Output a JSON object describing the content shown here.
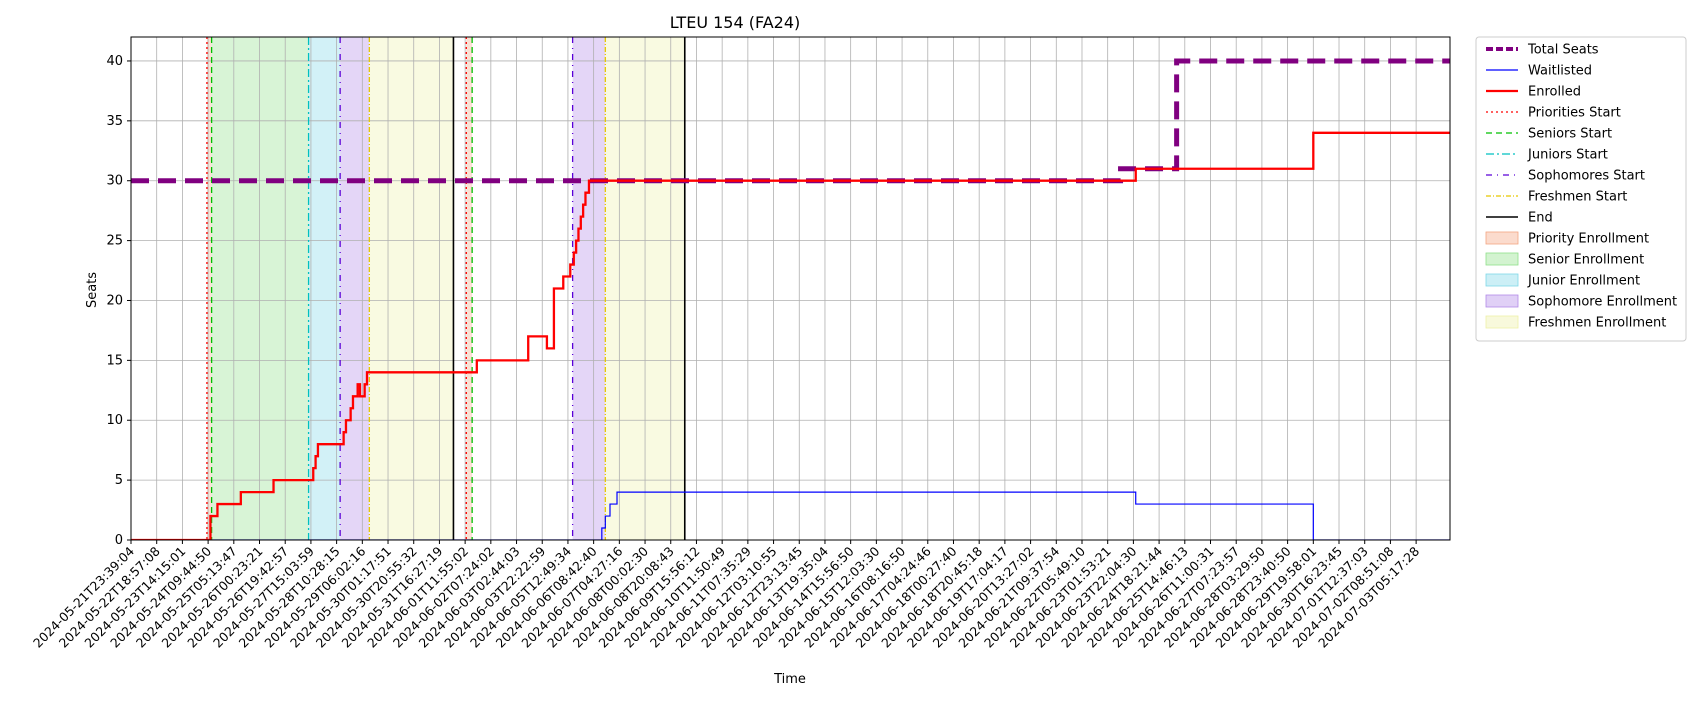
{
  "chart_data": {
    "type": "line",
    "title": "LTEU 154 (FA24)",
    "xlabel": "Time",
    "ylabel": "Seats",
    "ylim": [
      0,
      42
    ],
    "yticks": [
      0,
      5,
      10,
      15,
      20,
      25,
      30,
      35,
      40
    ],
    "xlim": [
      0,
      56.45
    ],
    "x_tick_labels": [
      "2024-05-21T23:39:04",
      "2024-05-22T18:57:08",
      "2024-05-23T14:15:01",
      "2024-05-24T09:44:50",
      "2024-05-25T05:13:47",
      "2024-05-26T00:23:21",
      "2024-05-26T19:42:57",
      "2024-05-27T15:03:59",
      "2024-05-28T10:28:15",
      "2024-05-29T06:02:16",
      "2024-05-30T01:17:51",
      "2024-05-30T20:55:32",
      "2024-05-31T16:27:19",
      "2024-06-01T11:55:02",
      "2024-06-02T07:24:02",
      "2024-06-03T02:44:03",
      "2024-06-03T22:22:59",
      "2024-06-05T12:49:34",
      "2024-06-06T08:42:40",
      "2024-06-07T04:27:16",
      "2024-06-08T00:02:30",
      "2024-06-08T20:08:43",
      "2024-06-09T15:56:12",
      "2024-06-10T11:50:49",
      "2024-06-11T07:35:29",
      "2024-06-12T03:10:55",
      "2024-06-12T23:13:45",
      "2024-06-13T19:35:04",
      "2024-06-14T15:56:50",
      "2024-06-15T12:03:30",
      "2024-06-16T08:16:50",
      "2024-06-17T04:24:46",
      "2024-06-18T00:27:40",
      "2024-06-18T20:45:18",
      "2024-06-19T17:04:17",
      "2024-06-20T13:27:02",
      "2024-06-21T09:37:54",
      "2024-06-22T05:49:10",
      "2024-06-23T01:53:21",
      "2024-06-23T22:04:30",
      "2024-06-24T18:21:44",
      "2024-06-25T14:46:13",
      "2024-06-26T11:00:31",
      "2024-06-27T07:23:57",
      "2024-06-28T03:29:50",
      "2024-06-28T23:40:50",
      "2024-06-29T19:58:01",
      "2024-06-30T16:23:45",
      "2024-07-01T12:37:03",
      "2024-07-02T08:51:08",
      "2024-07-03T05:17:28"
    ],
    "grid": true,
    "legend_position": "outside upper right",
    "phases": [
      {
        "name": "Priority Enrollment",
        "start": 3.25,
        "end": 3.45,
        "color": "#f4a582"
      },
      {
        "name": "Senior Enrollment",
        "start": 3.45,
        "end": 7.6,
        "color": "#90e08a"
      },
      {
        "name": "Junior Enrollment",
        "start": 7.6,
        "end": 8.95,
        "color": "#7fd8e8"
      },
      {
        "name": "Sophomore Enrollment",
        "start": 8.95,
        "end": 10.2,
        "color": "#b28ae8"
      },
      {
        "name": "Freshmen Enrollment",
        "start": 10.2,
        "end": 13.8,
        "color": "#eef0a8"
      },
      {
        "name": "Priority Enrollment",
        "start": 14.35,
        "end": 14.6,
        "color": "#f4a582"
      },
      {
        "name": "Sophomore Enrollment",
        "start": 18.9,
        "end": 20.3,
        "color": "#b28ae8"
      },
      {
        "name": "Freshmen Enrollment",
        "start": 20.3,
        "end": 23.7,
        "color": "#eef0a8"
      }
    ],
    "markers": [
      {
        "name": "Priorities Start",
        "x": 3.25,
        "color": "#ff0000",
        "dash": "2,3"
      },
      {
        "name": "Seniors Start",
        "x": 3.45,
        "color": "#00c000",
        "dash": "6,4"
      },
      {
        "name": "Juniors Start",
        "x": 7.6,
        "color": "#00c0c0",
        "dash": "8,3,2,3"
      },
      {
        "name": "Sophomores Start",
        "x": 8.95,
        "color": "#5a00d8",
        "dash": "6,5,1,5"
      },
      {
        "name": "Freshmen Start",
        "x": 10.2,
        "color": "#e6c800",
        "dash": "5,2,1,2"
      },
      {
        "name": "End",
        "x": 13.8,
        "color": "#000000",
        "dash": ""
      },
      {
        "name": "Priorities Start",
        "x": 14.35,
        "color": "#ff0000",
        "dash": "2,3"
      },
      {
        "name": "Seniors Start",
        "x": 14.6,
        "color": "#00c000",
        "dash": "6,4"
      },
      {
        "name": "Sophomores Start",
        "x": 18.9,
        "color": "#5a00d8",
        "dash": "6,5,1,5"
      },
      {
        "name": "Freshmen Start",
        "x": 20.3,
        "color": "#e6c800",
        "dash": "5,2,1,2"
      },
      {
        "name": "End",
        "x": 23.7,
        "color": "#000000",
        "dash": ""
      }
    ],
    "series": [
      {
        "name": "Total Seats",
        "color": "#800080",
        "style": "dashed-thick",
        "x": [
          0,
          42.35,
          42.35,
          43.5,
          43.5,
          44.75,
          44.75,
          56.45
        ],
        "y": [
          30,
          30,
          31,
          31,
          31,
          31,
          40,
          40
        ]
      },
      {
        "name": "Waitlisted",
        "color": "#0000ff",
        "style": "thin",
        "x": [
          0,
          20.15,
          20.15,
          20.3,
          20.3,
          20.5,
          20.5,
          20.8,
          20.8,
          43.0,
          43.0,
          50.6,
          50.6,
          56.45
        ],
        "y": [
          0,
          0,
          1,
          1,
          2,
          2,
          3,
          3,
          4,
          4,
          3,
          3,
          0,
          0
        ]
      },
      {
        "name": "Enrolled",
        "color": "#ff0000",
        "style": "solid",
        "x": [
          0,
          3.4,
          3.4,
          3.7,
          3.7,
          4.7,
          4.7,
          6.1,
          6.1,
          7.8,
          7.8,
          7.9,
          7.9,
          8.0,
          8.0,
          9.1,
          9.1,
          9.2,
          9.2,
          9.4,
          9.4,
          9.5,
          9.5,
          9.6,
          9.6,
          9.7,
          9.7,
          9.8,
          9.8,
          10.0,
          10.0,
          10.1,
          10.1,
          10.3,
          10.3,
          14.8,
          14.8,
          17.0,
          17.0,
          17.8,
          17.8,
          18.1,
          18.1,
          18.5,
          18.5,
          18.8,
          18.8,
          18.95,
          18.95,
          19.05,
          19.05,
          19.15,
          19.15,
          19.25,
          19.25,
          19.35,
          19.35,
          19.45,
          19.45,
          19.5,
          19.5,
          19.6,
          19.6,
          20.05,
          20.05,
          43.0,
          43.0,
          50.6,
          50.6,
          56.45
        ],
        "y": [
          0,
          0,
          2,
          2,
          3,
          3,
          4,
          4,
          5,
          5,
          6,
          6,
          7,
          7,
          8,
          8,
          9,
          9,
          10,
          10,
          11,
          11,
          12,
          12,
          12,
          12,
          13,
          13,
          12,
          12,
          13,
          13,
          14,
          14,
          14,
          14,
          15,
          15,
          17,
          17,
          16,
          16,
          21,
          21,
          22,
          22,
          23,
          23,
          24,
          24,
          25,
          25,
          26,
          26,
          27,
          27,
          28,
          28,
          29,
          29,
          29,
          29,
          30,
          30,
          30,
          30,
          31,
          31,
          34,
          34
        ]
      }
    ],
    "legend": [
      {
        "label": "Total Seats",
        "kind": "line",
        "color": "#800080",
        "dash": "7,3",
        "width": 4
      },
      {
        "label": "Waitlisted",
        "kind": "line",
        "color": "#0000ff",
        "dash": "",
        "width": 1.2
      },
      {
        "label": "Enrolled",
        "kind": "line",
        "color": "#ff0000",
        "dash": "",
        "width": 2.2
      },
      {
        "label": "Priorities Start",
        "kind": "line",
        "color": "#ff0000",
        "dash": "2,3",
        "width": 1.2
      },
      {
        "label": "Seniors Start",
        "kind": "line",
        "color": "#00c000",
        "dash": "6,4",
        "width": 1.2
      },
      {
        "label": "Juniors Start",
        "kind": "line",
        "color": "#00c0c0",
        "dash": "8,3,2,3",
        "width": 1.2
      },
      {
        "label": "Sophomores Start",
        "kind": "line",
        "color": "#5a00d8",
        "dash": "6,5,1,5",
        "width": 1.2
      },
      {
        "label": "Freshmen Start",
        "kind": "line",
        "color": "#e6c800",
        "dash": "5,2,1,2",
        "width": 1.2
      },
      {
        "label": "End",
        "kind": "line",
        "color": "#000000",
        "dash": "",
        "width": 1.5
      },
      {
        "label": "Priority Enrollment",
        "kind": "patch",
        "color": "#f4a582"
      },
      {
        "label": "Senior Enrollment",
        "kind": "patch",
        "color": "#90e08a"
      },
      {
        "label": "Junior Enrollment",
        "kind": "patch",
        "color": "#7fd8e8"
      },
      {
        "label": "Sophomore Enrollment",
        "kind": "patch",
        "color": "#b28ae8"
      },
      {
        "label": "Freshmen Enrollment",
        "kind": "patch",
        "color": "#eef0a8"
      }
    ]
  }
}
